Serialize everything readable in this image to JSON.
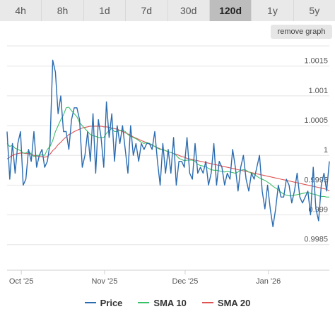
{
  "tabs": [
    {
      "label": "4h",
      "active": false
    },
    {
      "label": "8h",
      "active": false
    },
    {
      "label": "1d",
      "active": false
    },
    {
      "label": "7d",
      "active": false
    },
    {
      "label": "30d",
      "active": false
    },
    {
      "label": "120d",
      "active": true
    },
    {
      "label": "1y",
      "active": false
    },
    {
      "label": "5y",
      "active": false
    }
  ],
  "remove_graph_label": "remove graph",
  "colors": {
    "price": "#2b6cb0",
    "sma10": "#3cbf6a",
    "sma20": "#e05252",
    "grid": "#e4e4e4",
    "axis_text": "#555555"
  },
  "legend": [
    {
      "key": "price",
      "label": "Price"
    },
    {
      "key": "sma10",
      "label": "SMA 10"
    },
    {
      "key": "sma20",
      "label": "SMA 20"
    }
  ],
  "chart_data": {
    "type": "line",
    "y_ticks": [
      0.9985,
      0.999,
      0.9995,
      1,
      1.0005,
      1.001,
      1.0015
    ],
    "y_tick_labels": [
      "0.9985",
      "0.999",
      "0.9995",
      "1",
      "1.0005",
      "1.001",
      "1.0015"
    ],
    "ylim": [
      0.99807,
      1.0019
    ],
    "x_ticks": [
      5.3,
      36.3,
      66.3,
      97.3
    ],
    "x_tick_labels": [
      "Oct '25",
      "Nov '25",
      "Dec '25",
      "Jan '26"
    ],
    "xlim": [
      0,
      120
    ],
    "grid": true,
    "legend_position": "bottom",
    "series": [
      {
        "name": "Price",
        "color": "#2b6cb0",
        "x": [
          0,
          1,
          2,
          3,
          4,
          5,
          6,
          7,
          8,
          9,
          10,
          11,
          12,
          13,
          14,
          15,
          16,
          17,
          18,
          19,
          20,
          21,
          22,
          23,
          24,
          25,
          26,
          27,
          28,
          29,
          30,
          31,
          32,
          33,
          34,
          35,
          36,
          37,
          38,
          39,
          40,
          41,
          42,
          43,
          44,
          45,
          46,
          47,
          48,
          49,
          50,
          51,
          52,
          53,
          54,
          55,
          56,
          57,
          58,
          59,
          60,
          61,
          62,
          63,
          64,
          65,
          66,
          67,
          68,
          69,
          70,
          71,
          72,
          73,
          74,
          75,
          76,
          77,
          78,
          79,
          80,
          81,
          82,
          83,
          84,
          85,
          86,
          87,
          88,
          89,
          90,
          91,
          92,
          93,
          94,
          95,
          96,
          97,
          98,
          99,
          100,
          101,
          102,
          103,
          104,
          105,
          106,
          107,
          108,
          109,
          110,
          111,
          112,
          113,
          114,
          115,
          116,
          117,
          118,
          119,
          120
        ],
        "values": [
          1.0004,
          0.9996,
          1.0002,
          0.9997,
          1.0002,
          1.0004,
          0.9995,
          0.9996,
          1.0001,
          0.9999,
          1.0004,
          0.9998,
          1.0,
          1.0001,
          0.9998,
          0.9999,
          1.0002,
          1.0016,
          1.0014,
          1.0007,
          1.001,
          1.0004,
          1.0004,
          1.0001,
          1.0006,
          1.0008,
          1.0008,
          1.0006,
          0.9998,
          1.0,
          1.0004,
          0.9999,
          1.0007,
          0.9997,
          1.0006,
          1.0003,
          0.9998,
          1.0009,
          1.0003,
          1.0007,
          0.9999,
          1.0005,
          1.0002,
          1.0005,
          1.0001,
          0.9997,
          1.0005,
          1.0,
          1.0002,
          0.9999,
          1.0002,
          1.0001,
          1.0002,
          1.0002,
          1.0001,
          1.0004,
          0.9999,
          0.9995,
          1.0002,
          0.9997,
          1.0001,
          0.9997,
          1.0003,
          0.9995,
          0.9999,
          0.9999,
          0.9998,
          1.0003,
          0.9997,
          0.9996,
          1.0002,
          0.9997,
          0.9998,
          0.9997,
          0.9999,
          0.9995,
          0.9997,
          1.0002,
          0.9995,
          0.9999,
          0.9998,
          0.9995,
          0.9997,
          0.9996,
          1.0001,
          0.9998,
          0.9994,
          0.9998,
          1.0,
          0.9996,
          0.9994,
          0.9997,
          0.9996,
          0.9998,
          1.0,
          0.9994,
          0.9991,
          0.9995,
          0.9991,
          0.9988,
          0.9991,
          0.9995,
          0.9993,
          0.9993,
          0.9996,
          0.9995,
          0.9992,
          0.9994,
          0.9997,
          0.9993,
          0.9992,
          0.9993,
          0.9994,
          0.999,
          0.9998,
          0.9991,
          0.9989,
          0.9995,
          0.9997,
          0.9994,
          0.9999
        ]
      },
      {
        "name": "SMA 10",
        "color": "#3cbf6a",
        "x": [
          0,
          1,
          2,
          3,
          4,
          5,
          6,
          7,
          8,
          9,
          10,
          11,
          12,
          13,
          14,
          15,
          16,
          17,
          18,
          19,
          20,
          21,
          22,
          23,
          24,
          25,
          26,
          27,
          28,
          29,
          30,
          31,
          32,
          33,
          34,
          35,
          36,
          37,
          38,
          39,
          40,
          41,
          42,
          43,
          44,
          45,
          46,
          47,
          48,
          49,
          50,
          51,
          52,
          53,
          54,
          55,
          56,
          57,
          58,
          59,
          60,
          61,
          62,
          63,
          64,
          65,
          66,
          67,
          68,
          69,
          70,
          71,
          72,
          73,
          74,
          75,
          76,
          77,
          78,
          79,
          80,
          81,
          82,
          83,
          84,
          85,
          86,
          87,
          88,
          89,
          90,
          91,
          92,
          93,
          94,
          95,
          96,
          97,
          98,
          99,
          100,
          101,
          102,
          103,
          104,
          105,
          106,
          107,
          108,
          109,
          110,
          111,
          112,
          113,
          114,
          115,
          116,
          117,
          118,
          119,
          120
        ],
        "values": [
          1.0002,
          1.00015,
          1.00017,
          1.00012,
          1.0001,
          1.00008,
          1.00004,
          1.00004,
          1.00007,
          1.00002,
          0.99998,
          1.0,
          1.0,
          1.00001,
          1.0,
          1.0001,
          1.00015,
          1.00025,
          1.0004,
          1.0005,
          1.0006,
          1.00068,
          1.0008,
          1.00081,
          1.00075,
          1.0007,
          1.00065,
          1.00055,
          1.0005,
          1.00045,
          1.0004,
          1.00035,
          1.00033,
          1.00032,
          1.0003,
          1.0003,
          1.0003,
          1.00037,
          1.00042,
          1.00045,
          1.0004,
          1.0004,
          1.00042,
          1.00042,
          1.0004,
          1.00035,
          1.00032,
          1.0003,
          1.00028,
          1.00025,
          1.00022,
          1.0002,
          1.00022,
          1.0002,
          1.00018,
          1.00015,
          1.00012,
          1.0001,
          1.0001,
          1.00008,
          1.00006,
          1.00005,
          1.00003,
          1.0,
          0.99995,
          0.99993,
          0.99991,
          0.99992,
          0.99992,
          0.99992,
          0.9999,
          0.99985,
          0.99983,
          0.99982,
          0.99981,
          0.99978,
          0.99976,
          0.99975,
          0.99975,
          0.99974,
          0.99973,
          0.99972,
          0.99973,
          0.99972,
          0.99971,
          0.9997,
          0.99972,
          0.99975,
          0.99976,
          0.99975,
          0.99972,
          0.9997,
          0.99968,
          0.99965,
          0.99962,
          0.9996,
          0.99958,
          0.99955,
          0.99952,
          0.99948,
          0.99945,
          0.99942,
          0.99938,
          0.99935,
          0.99933,
          0.99932,
          0.99932,
          0.99933,
          0.99934,
          0.99935,
          0.99936,
          0.99937,
          0.99938,
          0.99936,
          0.99935,
          0.99934,
          0.99932,
          0.99931,
          0.99931,
          0.9993,
          0.9993
        ]
      },
      {
        "name": "SMA 20",
        "color": "#e05252",
        "x": [
          0,
          1,
          2,
          3,
          4,
          5,
          6,
          7,
          8,
          9,
          10,
          11,
          12,
          13,
          14,
          15,
          16,
          17,
          18,
          19,
          20,
          21,
          22,
          23,
          24,
          25,
          26,
          27,
          28,
          29,
          30,
          31,
          32,
          33,
          34,
          35,
          36,
          37,
          38,
          39,
          40,
          41,
          42,
          43,
          44,
          45,
          46,
          47,
          48,
          49,
          50,
          51,
          52,
          53,
          54,
          55,
          56,
          57,
          58,
          59,
          60,
          61,
          62,
          63,
          64,
          65,
          66,
          67,
          68,
          69,
          70,
          71,
          72,
          73,
          74,
          75,
          76,
          77,
          78,
          79,
          80,
          81,
          82,
          83,
          84,
          85,
          86,
          87,
          88,
          89,
          90,
          91,
          92,
          93,
          94,
          95,
          96,
          97,
          98,
          99,
          100,
          101,
          102,
          103,
          104,
          105,
          106,
          107,
          108,
          109,
          110,
          111,
          112,
          113,
          114,
          115,
          116,
          117,
          118,
          119,
          120
        ],
        "values": [
          0.99994,
          0.99997,
          1.0,
          1.00002,
          1.00003,
          1.00004,
          1.00004,
          1.00003,
          1.00003,
          1.00002,
          1.0,
          0.99999,
          0.99998,
          0.99998,
          0.99997,
          0.99998,
          1.00002,
          1.00008,
          1.00012,
          1.00018,
          1.00022,
          1.00027,
          1.00031,
          1.00035,
          1.00037,
          1.0004,
          1.00042,
          1.00044,
          1.00046,
          1.00047,
          1.00048,
          1.00049,
          1.00049,
          1.00049,
          1.00049,
          1.00049,
          1.00048,
          1.00048,
          1.00047,
          1.00046,
          1.00045,
          1.00044,
          1.00042,
          1.0004,
          1.00038,
          1.00036,
          1.00034,
          1.00031,
          1.00029,
          1.00027,
          1.00025,
          1.00023,
          1.00021,
          1.00019,
          1.00017,
          1.00015,
          1.00013,
          1.00011,
          1.0001,
          1.00008,
          1.00006,
          1.00005,
          1.00003,
          1.00002,
          1.0,
          0.99998,
          0.99997,
          0.99995,
          0.99994,
          0.99993,
          0.99992,
          0.99991,
          0.9999,
          0.99989,
          0.99988,
          0.99987,
          0.99986,
          0.99985,
          0.99984,
          0.99983,
          0.99982,
          0.99981,
          0.9998,
          0.99979,
          0.99978,
          0.99977,
          0.99976,
          0.99975,
          0.99974,
          0.99973,
          0.99972,
          0.99971,
          0.9997,
          0.99969,
          0.99968,
          0.99967,
          0.99966,
          0.99965,
          0.99964,
          0.99963,
          0.99962,
          0.99961,
          0.9996,
          0.99959,
          0.99958,
          0.99957,
          0.99956,
          0.99955,
          0.99954,
          0.99953,
          0.99952,
          0.99951,
          0.9995,
          0.99949,
          0.99948,
          0.99947,
          0.99946,
          0.99945,
          0.99944,
          0.99943,
          0.9994
        ]
      }
    ]
  }
}
